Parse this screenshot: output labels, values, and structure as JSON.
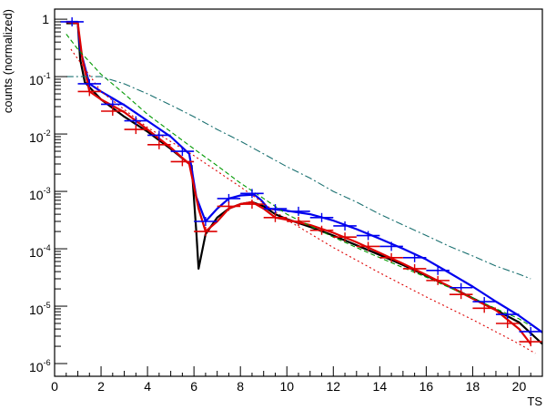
{
  "chart_data": {
    "type": "line",
    "xlabel": "TS",
    "ylabel": "counts (normalized)",
    "xlim": [
      0,
      21
    ],
    "ylim": [
      6e-07,
      1.5
    ],
    "yscale": "log",
    "grid": false,
    "x_ticks": [
      "0",
      "2",
      "4",
      "6",
      "8",
      "10",
      "12",
      "14",
      "16",
      "18",
      "20"
    ],
    "y_ticks": [
      {
        "base": "1",
        "exp": ""
      },
      {
        "base": "10",
        "exp": "-1"
      },
      {
        "base": "10",
        "exp": "-2"
      },
      {
        "base": "10",
        "exp": "-3"
      },
      {
        "base": "10",
        "exp": "-4"
      },
      {
        "base": "10",
        "exp": "-5"
      },
      {
        "base": "10",
        "exp": "-6"
      }
    ],
    "series": [
      {
        "color": "#000000",
        "style": "solid",
        "points": [
          [
            0.5,
            0.85
          ],
          [
            1.0,
            0.85
          ],
          [
            1.1,
            0.2
          ],
          [
            1.3,
            0.08
          ],
          [
            2,
            0.04
          ],
          [
            3,
            0.02
          ],
          [
            4,
            0.011
          ],
          [
            5,
            0.0055
          ],
          [
            5.9,
            0.0028
          ],
          [
            6.1,
            0.0002
          ],
          [
            6.2,
            4.5e-05
          ],
          [
            6.5,
            0.00018
          ],
          [
            7,
            0.00035
          ],
          [
            7.5,
            0.0005
          ],
          [
            8,
            0.0006
          ],
          [
            8.5,
            0.00065
          ],
          [
            9,
            0.00055
          ],
          [
            9.5,
            0.0004
          ],
          [
            10,
            0.00033
          ],
          [
            11,
            0.00024
          ],
          [
            12,
            0.00017
          ],
          [
            13,
            0.000115
          ],
          [
            14,
            7.8e-05
          ],
          [
            15,
            5.2e-05
          ],
          [
            16,
            3.4e-05
          ],
          [
            17,
            2.2e-05
          ],
          [
            18,
            1.38e-05
          ],
          [
            19,
            8.6e-06
          ],
          [
            20,
            5.2e-06
          ],
          [
            21,
            2.2e-06
          ]
        ]
      },
      {
        "color": "#0000ee",
        "style": "solid",
        "points": [
          [
            0.5,
            0.9
          ],
          [
            1.0,
            0.9
          ],
          [
            1.1,
            0.3
          ],
          [
            1.5,
            0.075
          ],
          [
            2,
            0.055
          ],
          [
            3,
            0.032
          ],
          [
            4,
            0.017
          ],
          [
            5,
            0.009
          ],
          [
            5.8,
            0.0045
          ],
          [
            6.1,
            0.0008
          ],
          [
            6.5,
            0.0003
          ],
          [
            7,
            0.0005
          ],
          [
            7.5,
            0.00075
          ],
          [
            8,
            0.00085
          ],
          [
            8.6,
            0.00088
          ],
          [
            8.9,
            0.0007
          ],
          [
            9.2,
            0.0005
          ],
          [
            10,
            0.00046
          ],
          [
            11,
            0.0004
          ],
          [
            12,
            0.00031
          ],
          [
            13,
            0.00022
          ],
          [
            14,
            0.00015
          ],
          [
            15,
            0.0001
          ],
          [
            16,
            6.5e-05
          ],
          [
            17,
            3.8e-05
          ],
          [
            18,
            2.2e-05
          ],
          [
            19,
            1.2e-05
          ],
          [
            20,
            6.8e-06
          ],
          [
            21,
            3.5e-06
          ]
        ]
      },
      {
        "color": "#dd0000",
        "style": "solid",
        "points": [
          [
            0.5,
            0.9
          ],
          [
            1.0,
            0.85
          ],
          [
            1.2,
            0.2
          ],
          [
            1.5,
            0.055
          ],
          [
            2,
            0.04
          ],
          [
            3,
            0.024
          ],
          [
            4,
            0.012
          ],
          [
            5,
            0.0058
          ],
          [
            5.8,
            0.003
          ],
          [
            6.2,
            0.0005
          ],
          [
            6.5,
            0.0002
          ],
          [
            7,
            0.0003
          ],
          [
            7.5,
            0.0005
          ],
          [
            8,
            0.0006
          ],
          [
            8.5,
            0.00065
          ],
          [
            9,
            0.0005
          ],
          [
            9.5,
            0.00035
          ],
          [
            10,
            0.00032
          ],
          [
            11,
            0.00026
          ],
          [
            12,
            0.00019
          ],
          [
            13,
            0.00013
          ],
          [
            14,
            8.5e-05
          ],
          [
            15,
            5.5e-05
          ],
          [
            16,
            3.5e-05
          ],
          [
            17,
            2.2e-05
          ],
          [
            18,
            1.35e-05
          ],
          [
            19,
            8.5e-06
          ],
          [
            20,
            4e-06
          ],
          [
            20.5,
            2.2e-06
          ]
        ]
      },
      {
        "color": "#dd0000",
        "style": "dotted",
        "points": [
          [
            0.7,
            0.3
          ],
          [
            2,
            0.055
          ],
          [
            4,
            0.013
          ],
          [
            6,
            0.0042
          ],
          [
            8,
            0.0012
          ],
          [
            10,
            0.00032
          ],
          [
            12,
            0.000105
          ],
          [
            14,
            3.8e-05
          ],
          [
            16,
            1.45e-05
          ],
          [
            18,
            5.8e-06
          ],
          [
            20,
            2.2e-06
          ],
          [
            20.7,
            1.5e-06
          ]
        ]
      },
      {
        "color": "#009900",
        "style": "dashed",
        "points": [
          [
            0.5,
            0.55
          ],
          [
            1,
            0.3
          ],
          [
            2,
            0.11
          ],
          [
            3,
            0.05
          ],
          [
            4,
            0.022
          ],
          [
            5,
            0.011
          ],
          [
            6,
            0.0055
          ],
          [
            7,
            0.0028
          ],
          [
            8,
            0.0014
          ],
          [
            9,
            0.00075
          ],
          [
            10,
            0.0004
          ],
          [
            11,
            0.00025
          ],
          [
            12,
            0.00016
          ],
          [
            13,
            0.000105
          ],
          [
            14,
            7e-05
          ],
          [
            15,
            4.7e-05
          ],
          [
            16,
            3.2e-05
          ],
          [
            17,
            2.1e-05
          ],
          [
            18,
            1.4e-05
          ],
          [
            19,
            9e-06
          ],
          [
            20,
            6e-06
          ],
          [
            20.5,
            4.5e-06
          ]
        ]
      },
      {
        "color": "#1a7070",
        "style": "dashdot",
        "points": [
          [
            0.5,
            0.1
          ],
          [
            1.5,
            0.1
          ],
          [
            2,
            0.1
          ],
          [
            3,
            0.075
          ],
          [
            4,
            0.05
          ],
          [
            5,
            0.032
          ],
          [
            6,
            0.02
          ],
          [
            7,
            0.012
          ],
          [
            8,
            0.0075
          ],
          [
            9,
            0.0045
          ],
          [
            10,
            0.0027
          ],
          [
            11,
            0.0017
          ],
          [
            12,
            0.001
          ],
          [
            13,
            0.00065
          ],
          [
            14,
            0.0004
          ],
          [
            15,
            0.00026
          ],
          [
            16,
            0.00017
          ],
          [
            17,
            0.00011
          ],
          [
            18,
            7.5e-05
          ],
          [
            19,
            5e-05
          ],
          [
            20,
            3.6e-05
          ],
          [
            20.5,
            3e-05
          ]
        ]
      }
    ],
    "error_markers": [
      {
        "color": "#0000ee",
        "points": [
          [
            0.75,
            0.9
          ],
          [
            1.5,
            0.075
          ],
          [
            2.5,
            0.033
          ],
          [
            3.5,
            0.017
          ],
          [
            4.5,
            0.0095
          ],
          [
            5.5,
            0.005
          ],
          [
            6.5,
            0.0003
          ],
          [
            7.5,
            0.00075
          ],
          [
            8.5,
            0.00092
          ],
          [
            9.5,
            0.0005
          ],
          [
            10.5,
            0.00045
          ],
          [
            11.5,
            0.00035
          ],
          [
            12.5,
            0.00025
          ],
          [
            13.5,
            0.00017
          ],
          [
            14.5,
            0.00011
          ],
          [
            15.5,
            7e-05
          ],
          [
            16.5,
            4.2e-05
          ],
          [
            17.5,
            2.1e-05
          ],
          [
            18.5,
            1.2e-05
          ],
          [
            19.5,
            7.2e-06
          ],
          [
            20.5,
            3.6e-06
          ]
        ]
      },
      {
        "color": "#dd0000",
        "points": [
          [
            1.5,
            0.055
          ],
          [
            2.5,
            0.025
          ],
          [
            3.5,
            0.012
          ],
          [
            4.5,
            0.0065
          ],
          [
            5.5,
            0.0033
          ],
          [
            6.5,
            0.0002
          ],
          [
            7.5,
            0.00055
          ],
          [
            8.5,
            0.0006
          ],
          [
            9.5,
            0.00035
          ],
          [
            10.5,
            0.0003
          ],
          [
            11.5,
            0.00021
          ],
          [
            12.5,
            0.00016
          ],
          [
            13.5,
            0.00011
          ],
          [
            14.5,
            7e-05
          ],
          [
            15.5,
            4.5e-05
          ],
          [
            16.5,
            2.8e-05
          ],
          [
            17.5,
            1.6e-05
          ],
          [
            18.5,
            9.2e-06
          ],
          [
            19.5,
            5e-06
          ],
          [
            20.5,
            2.4e-06
          ]
        ]
      }
    ]
  }
}
